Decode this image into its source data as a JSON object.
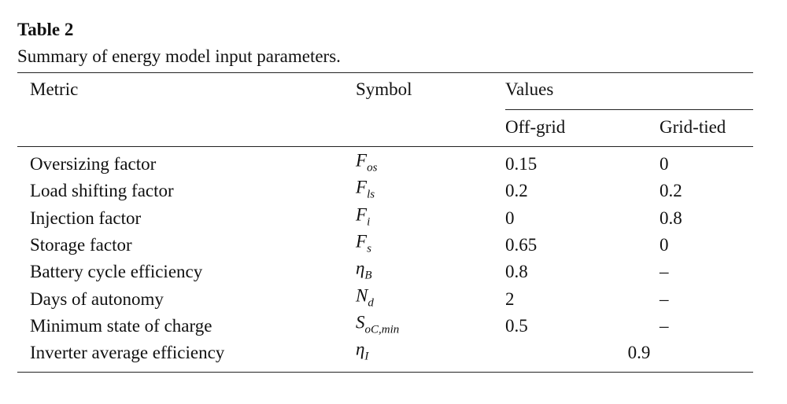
{
  "caption": {
    "label": "Table 2",
    "title": "Summary of energy model input parameters."
  },
  "table": {
    "headers": {
      "metric": "Metric",
      "symbol": "Symbol",
      "values": "Values",
      "columns": [
        "Off-grid",
        "Grid-tied"
      ]
    },
    "rows": [
      {
        "metric": "Oversizing factor",
        "symbol": {
          "base": "F",
          "sub": "os"
        },
        "values": [
          "0.15",
          "0"
        ]
      },
      {
        "metric": "Load shifting factor",
        "symbol": {
          "base": "F",
          "sub": "ls"
        },
        "values": [
          "0.2",
          "0.2"
        ]
      },
      {
        "metric": "Injection factor",
        "symbol": {
          "base": "F",
          "sub": "i"
        },
        "values": [
          "0",
          "0.8"
        ]
      },
      {
        "metric": "Storage factor",
        "symbol": {
          "base": "F",
          "sub": "s"
        },
        "values": [
          "0.65",
          "0"
        ]
      },
      {
        "metric": "Battery cycle efficiency",
        "symbol": {
          "base": "η",
          "sub": "B"
        },
        "values": [
          "0.8",
          "–"
        ]
      },
      {
        "metric": "Days of autonomy",
        "symbol": {
          "base": "N",
          "sub": "d"
        },
        "values": [
          "2",
          "–"
        ]
      },
      {
        "metric": "Minimum state of charge",
        "symbol": {
          "base": "S",
          "sub": "oC,min"
        },
        "values": [
          "0.5",
          "–"
        ]
      },
      {
        "metric": "Inverter average efficiency",
        "symbol": {
          "base": "η",
          "sub": "I"
        },
        "values": [
          "0.9"
        ]
      }
    ]
  }
}
